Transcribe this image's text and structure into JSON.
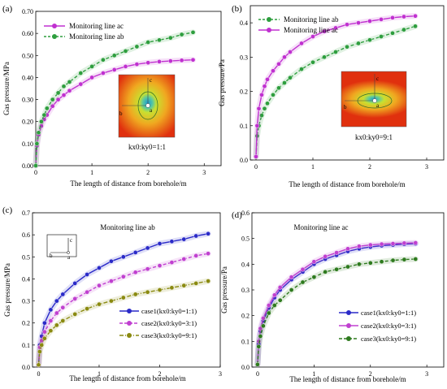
{
  "chart_data": [
    {
      "panel_label": "(a)",
      "type": "line",
      "xlabel": "The length of distance from borehole/m",
      "ylabel": "Gas pressure/MPa",
      "xlim": [
        0,
        3.3
      ],
      "ylim": [
        0,
        0.7
      ],
      "xticks": [
        "0",
        "1",
        "2",
        "3"
      ],
      "yticks": [
        "0.00",
        "0.10",
        "0.20",
        "0.30",
        "0.40",
        "0.50",
        "0.60",
        "0.70"
      ],
      "legend_position": "top-left",
      "annotation": "kx0:ky0=1:1",
      "inset_labels": [
        "c",
        "b",
        "a"
      ],
      "series": [
        {
          "name": "Monitoring line ac",
          "color": "#c030d0",
          "style": "solid",
          "marker": "filled",
          "x": [
            0,
            0.02,
            0.05,
            0.1,
            0.15,
            0.2,
            0.3,
            0.4,
            0.5,
            0.6,
            0.8,
            1.0,
            1.2,
            1.4,
            1.6,
            1.8,
            2.0,
            2.2,
            2.4,
            2.6,
            2.8
          ],
          "y": [
            0.0,
            0.09,
            0.14,
            0.18,
            0.21,
            0.23,
            0.27,
            0.3,
            0.32,
            0.34,
            0.37,
            0.4,
            0.42,
            0.435,
            0.45,
            0.46,
            0.467,
            0.472,
            0.475,
            0.478,
            0.48
          ]
        },
        {
          "name": "Monitoring line ab",
          "color": "#2e9e3e",
          "style": "dashed",
          "marker": "filled",
          "x": [
            0,
            0.02,
            0.05,
            0.1,
            0.15,
            0.2,
            0.3,
            0.4,
            0.5,
            0.6,
            0.8,
            1.0,
            1.2,
            1.4,
            1.6,
            1.8,
            2.0,
            2.2,
            2.4,
            2.6,
            2.8
          ],
          "y": [
            0.0,
            0.1,
            0.15,
            0.2,
            0.23,
            0.26,
            0.3,
            0.33,
            0.36,
            0.38,
            0.42,
            0.45,
            0.48,
            0.5,
            0.52,
            0.54,
            0.56,
            0.57,
            0.58,
            0.595,
            0.605
          ]
        }
      ]
    },
    {
      "panel_label": "(b)",
      "type": "line",
      "xlabel": "The length of distance from borehole/m",
      "ylabel": "Gas pressure/Pa",
      "xlim": [
        -0.1,
        3.3
      ],
      "ylim": [
        0,
        0.45
      ],
      "xticks": [
        "0",
        "1",
        "2",
        "3"
      ],
      "yticks": [
        "0.0",
        "0.1",
        "0.2",
        "0.3",
        "0.4"
      ],
      "legend_position": "top-left",
      "annotation": "kx0:ky0=9:1",
      "inset_labels": [
        "c",
        "b",
        "a"
      ],
      "series": [
        {
          "name": "Monitoring line ab",
          "color": "#2e9e3e",
          "style": "dashed",
          "marker": "filled",
          "x": [
            0,
            0.02,
            0.05,
            0.1,
            0.15,
            0.2,
            0.3,
            0.4,
            0.5,
            0.6,
            0.8,
            1.0,
            1.2,
            1.4,
            1.6,
            1.8,
            2.0,
            2.2,
            2.4,
            2.6,
            2.8
          ],
          "y": [
            0.01,
            0.07,
            0.1,
            0.13,
            0.15,
            0.165,
            0.19,
            0.21,
            0.225,
            0.24,
            0.265,
            0.285,
            0.3,
            0.315,
            0.33,
            0.34,
            0.35,
            0.36,
            0.37,
            0.38,
            0.39
          ]
        },
        {
          "name": "Monitoring line ac",
          "color": "#c030d0",
          "style": "solid",
          "marker": "filled",
          "x": [
            0,
            0.02,
            0.05,
            0.1,
            0.15,
            0.2,
            0.3,
            0.4,
            0.5,
            0.6,
            0.8,
            1.0,
            1.2,
            1.4,
            1.6,
            1.8,
            2.0,
            2.2,
            2.4,
            2.6,
            2.8
          ],
          "y": [
            0.01,
            0.1,
            0.15,
            0.19,
            0.215,
            0.235,
            0.26,
            0.28,
            0.3,
            0.315,
            0.34,
            0.36,
            0.375,
            0.385,
            0.395,
            0.4,
            0.405,
            0.41,
            0.415,
            0.418,
            0.42
          ]
        }
      ]
    },
    {
      "panel_label": "(c)",
      "type": "line",
      "title": "Monitoring line ab",
      "xlabel": "The length of distance from borehole/m",
      "ylabel": "Gas pressure/MPa",
      "xlim": [
        -0.1,
        3.0
      ],
      "ylim": [
        0,
        0.7
      ],
      "xticks": [
        "0",
        "1",
        "2",
        "3"
      ],
      "yticks": [
        "0.0",
        "0.1",
        "0.2",
        "0.3",
        "0.4",
        "0.5",
        "0.6",
        "0.7"
      ],
      "legend_position": "bottom-right",
      "inset_labels": [
        "c",
        "b",
        "a"
      ],
      "series": [
        {
          "name": "case1(kx0:ky0=1:1)",
          "color": "#2a2ac8",
          "style": "solid",
          "marker": "filled",
          "x": [
            0,
            0.02,
            0.05,
            0.1,
            0.2,
            0.3,
            0.4,
            0.6,
            0.8,
            1.0,
            1.2,
            1.4,
            1.6,
            1.8,
            2.0,
            2.2,
            2.4,
            2.6,
            2.8
          ],
          "y": [
            0.01,
            0.1,
            0.14,
            0.2,
            0.26,
            0.3,
            0.33,
            0.38,
            0.42,
            0.45,
            0.48,
            0.5,
            0.52,
            0.54,
            0.56,
            0.57,
            0.58,
            0.595,
            0.605
          ]
        },
        {
          "name": "case2(kx0:ky0=3:1)",
          "color": "#c040d0",
          "style": "dashed",
          "marker": "filled",
          "x": [
            0,
            0.02,
            0.05,
            0.1,
            0.2,
            0.3,
            0.4,
            0.6,
            0.8,
            1.0,
            1.2,
            1.4,
            1.6,
            1.8,
            2.0,
            2.2,
            2.4,
            2.6,
            2.8
          ],
          "y": [
            0.01,
            0.09,
            0.12,
            0.16,
            0.21,
            0.245,
            0.27,
            0.31,
            0.34,
            0.37,
            0.39,
            0.41,
            0.43,
            0.445,
            0.46,
            0.475,
            0.49,
            0.505,
            0.515
          ]
        },
        {
          "name": "case3(kx0:ky0=9:1)",
          "color": "#8a8a10",
          "style": "dashdot",
          "marker": "filled",
          "x": [
            0,
            0.02,
            0.05,
            0.1,
            0.2,
            0.3,
            0.4,
            0.6,
            0.8,
            1.0,
            1.2,
            1.4,
            1.6,
            1.8,
            2.0,
            2.2,
            2.4,
            2.6,
            2.8
          ],
          "y": [
            0.01,
            0.07,
            0.1,
            0.13,
            0.165,
            0.19,
            0.21,
            0.24,
            0.265,
            0.285,
            0.3,
            0.315,
            0.33,
            0.34,
            0.35,
            0.36,
            0.37,
            0.38,
            0.39
          ]
        }
      ]
    },
    {
      "panel_label": "(d)",
      "type": "line",
      "title": "Monitoring line ac",
      "xlabel": "The length of distance from borehole/m",
      "ylabel": "Gas pressure/Pa",
      "xlim": [
        -0.1,
        3.3
      ],
      "ylim": [
        0,
        0.6
      ],
      "xticks": [
        "0",
        "1",
        "2",
        "3"
      ],
      "yticks": [
        "0.0",
        "0.1",
        "0.2",
        "0.3",
        "0.4",
        "0.5",
        "0.6"
      ],
      "legend_position": "bottom-right",
      "series": [
        {
          "name": "case1(kx0:ky0=1:1)",
          "color": "#2a2ac8",
          "style": "solid",
          "marker": "filled",
          "x": [
            0,
            0.02,
            0.05,
            0.1,
            0.2,
            0.3,
            0.4,
            0.6,
            0.8,
            1.0,
            1.2,
            1.4,
            1.6,
            1.8,
            2.0,
            2.2,
            2.4,
            2.6,
            2.8
          ],
          "y": [
            0.01,
            0.09,
            0.14,
            0.18,
            0.23,
            0.27,
            0.3,
            0.34,
            0.37,
            0.4,
            0.42,
            0.435,
            0.45,
            0.46,
            0.467,
            0.472,
            0.475,
            0.478,
            0.48
          ]
        },
        {
          "name": "case2(kx0:ky0=3:1)",
          "color": "#c040d0",
          "style": "solid",
          "marker": "filled",
          "x": [
            0,
            0.02,
            0.05,
            0.1,
            0.2,
            0.3,
            0.4,
            0.6,
            0.8,
            1.0,
            1.2,
            1.4,
            1.6,
            1.8,
            2.0,
            2.2,
            2.4,
            2.6,
            2.8
          ],
          "y": [
            0.01,
            0.1,
            0.15,
            0.19,
            0.24,
            0.28,
            0.31,
            0.35,
            0.38,
            0.41,
            0.43,
            0.445,
            0.46,
            0.47,
            0.475,
            0.478,
            0.48,
            0.482,
            0.483
          ]
        },
        {
          "name": "case3(kx0:ky0=9:1)",
          "color": "#2e7a1e",
          "style": "dashed",
          "marker": "filled",
          "x": [
            0,
            0.02,
            0.05,
            0.1,
            0.2,
            0.3,
            0.4,
            0.6,
            0.8,
            1.0,
            1.2,
            1.4,
            1.6,
            1.8,
            2.0,
            2.2,
            2.4,
            2.6,
            2.8
          ],
          "y": [
            0.01,
            0.08,
            0.12,
            0.16,
            0.21,
            0.24,
            0.26,
            0.3,
            0.33,
            0.35,
            0.37,
            0.38,
            0.39,
            0.4,
            0.405,
            0.41,
            0.415,
            0.418,
            0.42
          ]
        }
      ]
    }
  ]
}
